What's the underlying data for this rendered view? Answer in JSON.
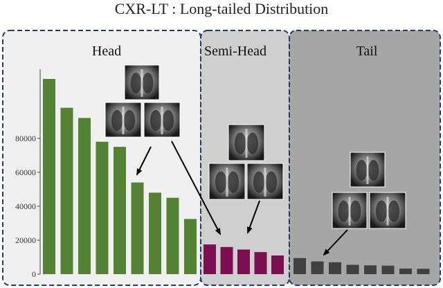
{
  "chart_data": {
    "type": "bar",
    "title": "CXR-LT : Long-tailed Distribution",
    "xlabel": "",
    "ylabel": "",
    "ylim": [
      0,
      115000
    ],
    "yticks": [
      0,
      20000,
      40000,
      60000,
      80000
    ],
    "grid": false,
    "groups": [
      {
        "label": "Head",
        "color": "#548235",
        "values": [
          115000,
          98000,
          92000,
          78000,
          75000,
          54000,
          48000,
          45000,
          32500
        ]
      },
      {
        "label": "Semi-Head",
        "color": "#7b0f52",
        "values": [
          17500,
          16000,
          14500,
          13000,
          11000
        ]
      },
      {
        "label": "Tail",
        "color": "#404040",
        "values": [
          9500,
          7500,
          7000,
          5500,
          5200,
          5000,
          3300,
          3200
        ]
      }
    ]
  },
  "colors": {
    "head_bg": "#f0f0f0",
    "semi_head_bg": "#cfcfcf",
    "tail_bg": "#a6a6a6",
    "panel_border": "#223a5e"
  },
  "images": [
    {
      "icon": "chest-xray-frontal-icon"
    },
    {
      "icon": "chest-xray-lateral-icon"
    },
    {
      "icon": "chest-xray-frontal-icon"
    },
    {
      "icon": "chest-xray-lateral-icon"
    },
    {
      "icon": "chest-xray-frontal-icon"
    },
    {
      "icon": "chest-xray-frontal-icon"
    },
    {
      "icon": "chest-xray-frontal-icon"
    },
    {
      "icon": "chest-xray-frontal-icon"
    },
    {
      "icon": "chest-xray-frontal-icon"
    }
  ]
}
